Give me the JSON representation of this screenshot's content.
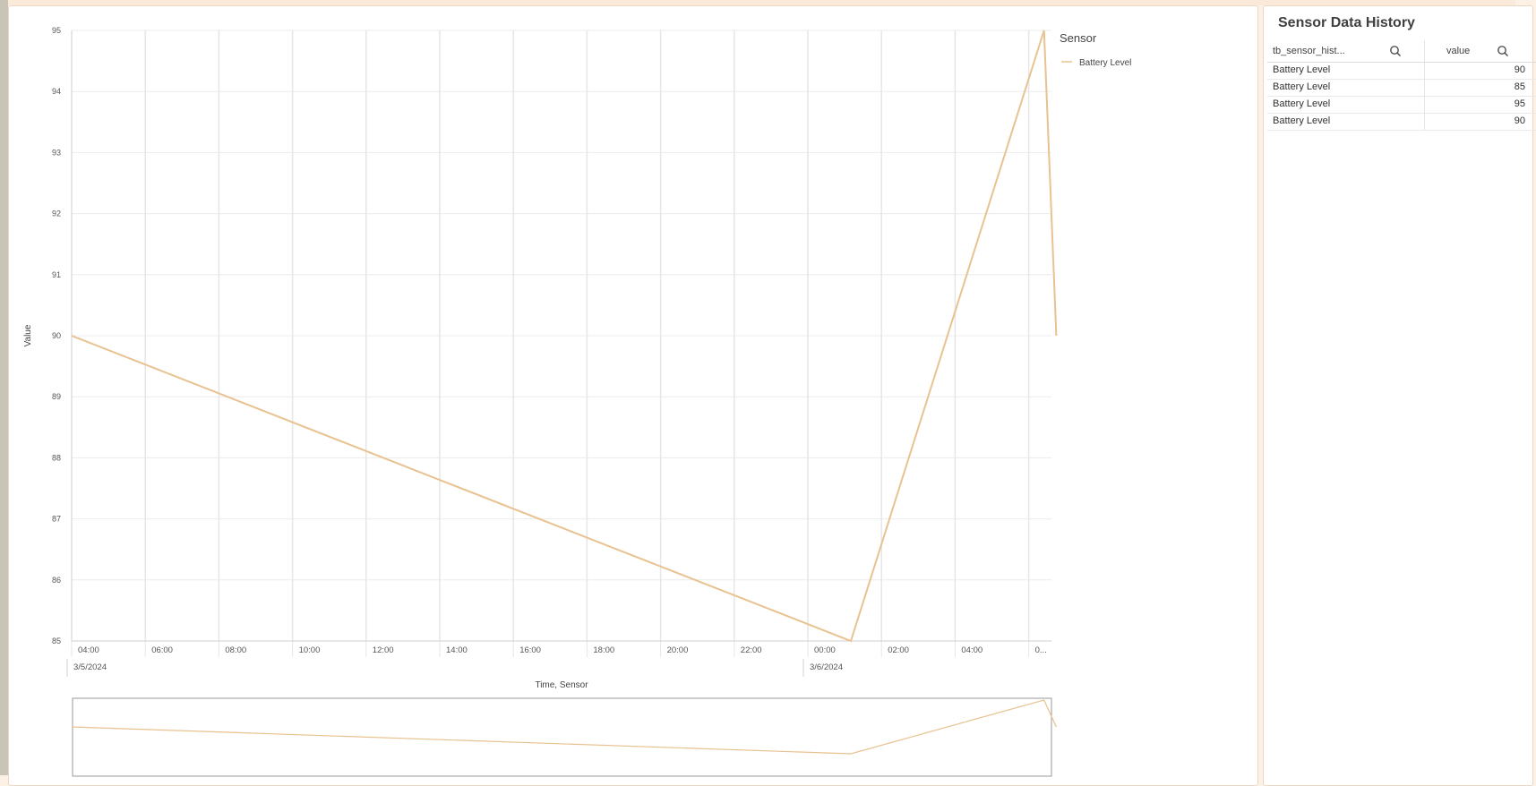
{
  "chart_data": {
    "type": "line",
    "ylabel": "Value",
    "xlabel": "Time, Sensor",
    "ylim": [
      85,
      95
    ],
    "yticks": [
      95,
      94,
      93,
      92,
      91,
      90,
      89,
      88,
      87,
      86,
      85
    ],
    "x_tick_labels": [
      "04:00",
      "06:00",
      "08:00",
      "10:00",
      "12:00",
      "14:00",
      "16:00",
      "18:00",
      "20:00",
      "22:00",
      "00:00",
      "02:00",
      "04:00",
      "0..."
    ],
    "date_labels": [
      "3/5/2024",
      "3/6/2024"
    ],
    "legend_title": "Sensor",
    "legend_placement": "top-right",
    "grid": true,
    "color": "#e8c290",
    "series": [
      {
        "name": "Battery Level",
        "x": [
          "3/5/2024 04:00",
          "3/6/2024 01:10",
          "3/6/2024 06:25",
          "3/6/2024 06:45"
        ],
        "values": [
          90,
          85,
          95,
          90
        ]
      }
    ]
  },
  "table": {
    "title": "Sensor Data History",
    "columns": [
      "tb_sensor_hist...",
      "value"
    ],
    "rows": [
      {
        "name": "Battery Level",
        "value": "90"
      },
      {
        "name": "Battery Level",
        "value": "85"
      },
      {
        "name": "Battery Level",
        "value": "95"
      },
      {
        "name": "Battery Level",
        "value": "90"
      }
    ]
  }
}
